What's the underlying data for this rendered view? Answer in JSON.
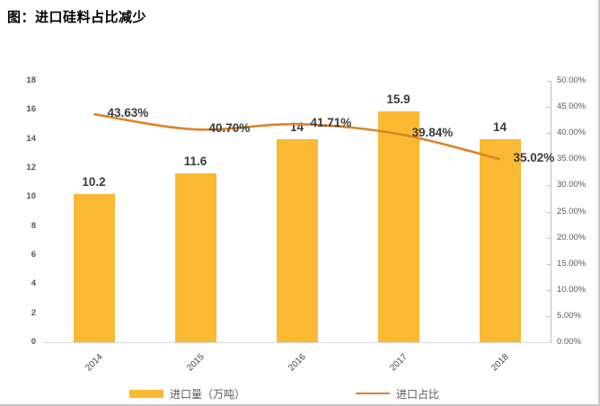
{
  "chart_data": {
    "type": "combo-bar-line",
    "title": "图：进口硅料占比减少",
    "categories": [
      "2014",
      "2015",
      "2016",
      "2017",
      "2018"
    ],
    "series": [
      {
        "name": "进口量（万吨）",
        "type": "bar",
        "axis": "left",
        "values": [
          10.2,
          11.6,
          14,
          15.9,
          14
        ],
        "labels": [
          "10.2",
          "11.6",
          "14",
          "15.9",
          "14"
        ],
        "color": "#F9B932"
      },
      {
        "name": "进口占比",
        "type": "line",
        "axis": "right",
        "values": [
          43.63,
          40.7,
          41.71,
          39.84,
          35.02
        ],
        "labels": [
          "43.63%",
          "40.70%",
          "41.71%",
          "39.84%",
          "35.02%"
        ],
        "color": "#DB8328"
      }
    ],
    "left_axis": {
      "min": 0,
      "max": 18,
      "step": 2,
      "ticks": [
        "0",
        "2",
        "4",
        "6",
        "8",
        "10",
        "12",
        "14",
        "16",
        "18"
      ]
    },
    "right_axis": {
      "min": 0,
      "max": 50,
      "step": 5,
      "ticks": [
        "0.00%",
        "5.00%",
        "10.00%",
        "15.00%",
        "20.00%",
        "25.00%",
        "30.00%",
        "35.00%",
        "40.00%",
        "45.00%",
        "50.00%"
      ]
    },
    "grid": false,
    "legend_position": "bottom"
  }
}
